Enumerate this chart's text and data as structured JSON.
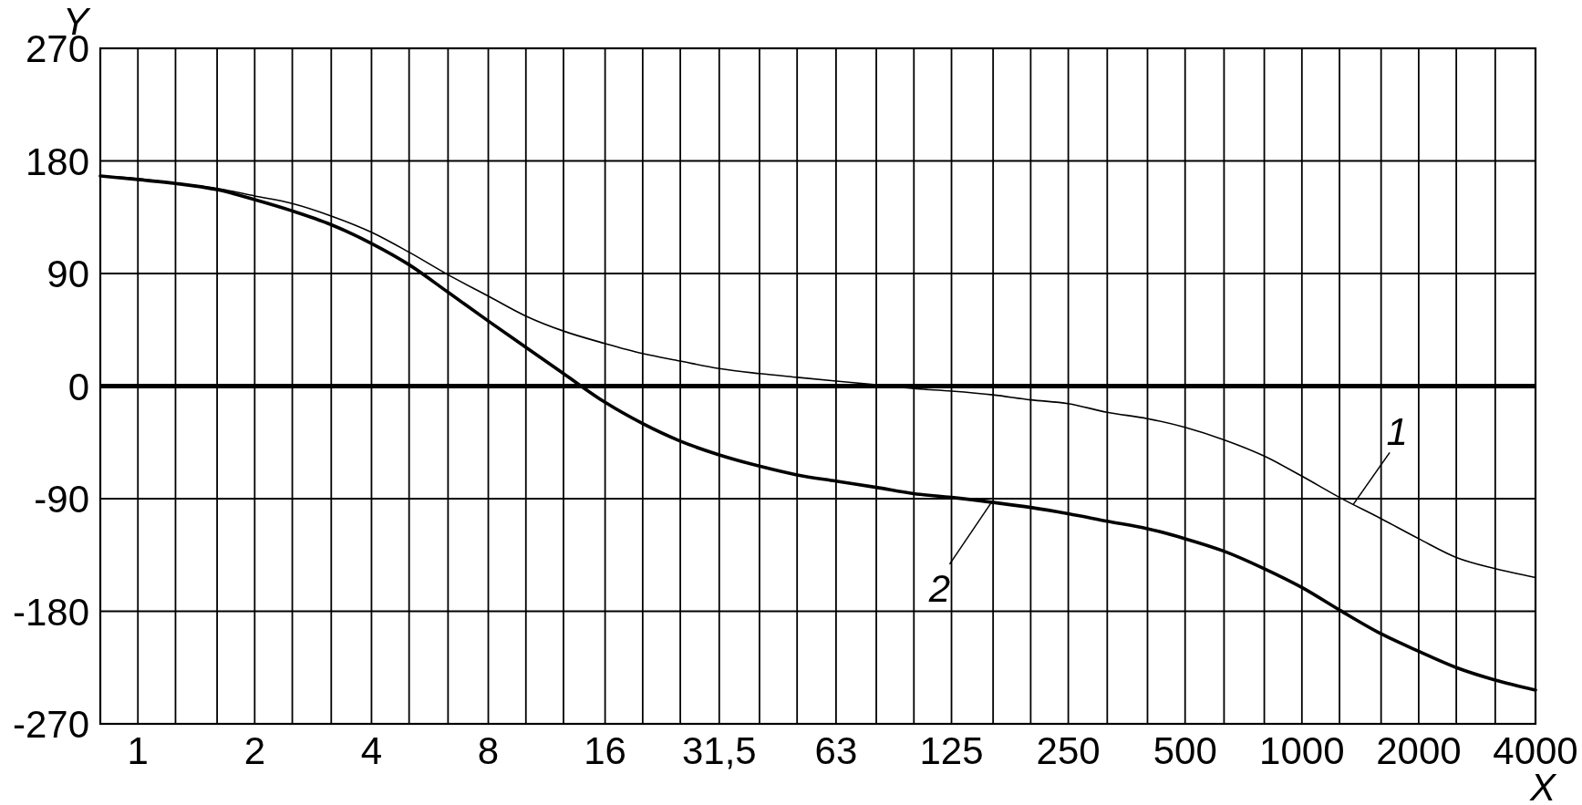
{
  "chart_data": {
    "type": "line",
    "xlabel": "X",
    "ylabel": "Y",
    "log": "x",
    "x": [
      0.8,
      1,
      1.25,
      1.6,
      2,
      2.5,
      3.15,
      4,
      5,
      6.3,
      8,
      10,
      12.5,
      16,
      20,
      25,
      31.5,
      40,
      50,
      63,
      80,
      100,
      125,
      160,
      200,
      250,
      315,
      400,
      500,
      630,
      800,
      1000,
      1250,
      1600,
      2000,
      2500,
      3150,
      4000
    ],
    "xlim": [
      0.8,
      4000
    ],
    "xticks": [
      1,
      {
        "value": 1.25,
        "label": null
      },
      {
        "value": 1.6,
        "label": null
      },
      2,
      {
        "value": 2.5,
        "label": null
      },
      {
        "value": 3.15,
        "label": null
      },
      4,
      {
        "value": 5,
        "label": null
      },
      {
        "value": 6.3,
        "label": null
      },
      8,
      {
        "value": 10,
        "label": null
      },
      {
        "value": 12.5,
        "label": null
      },
      16,
      {
        "value": 20,
        "label": null
      },
      {
        "value": 25,
        "label": null
      },
      {
        "value": 31.5,
        "label": "31,5"
      },
      {
        "value": 40,
        "label": null
      },
      {
        "value": 50,
        "label": null
      },
      63,
      {
        "value": 80,
        "label": null
      },
      {
        "value": 100,
        "label": null
      },
      125,
      {
        "value": 160,
        "label": null
      },
      {
        "value": 200,
        "label": null
      },
      250,
      {
        "value": 315,
        "label": null
      },
      {
        "value": 400,
        "label": null
      },
      500,
      {
        "value": 630,
        "label": null
      },
      {
        "value": 800,
        "label": null
      },
      1000,
      {
        "value": 1250,
        "label": null
      },
      {
        "value": 1600,
        "label": null
      },
      2000,
      {
        "value": 2500,
        "label": null
      },
      {
        "value": 3150,
        "label": null
      },
      4000
    ],
    "ylim": [
      -270,
      270
    ],
    "yticks": [
      -270,
      -180,
      -90,
      0,
      90,
      180,
      270
    ],
    "grid": true,
    "series": [
      {
        "name": "1",
        "color": "#000000",
        "values": [
          168,
          166,
          162,
          158,
          152,
          146,
          136,
          123,
          107,
          89,
          72,
          56,
          44,
          34,
          26,
          20,
          14,
          10,
          7,
          4,
          1,
          -2,
          -4,
          -7,
          -11,
          -14,
          -21,
          -26,
          -33,
          -43,
          -56,
          -72,
          -89,
          -106,
          -122,
          -137,
          -146,
          -153
        ]
      },
      {
        "name": "2",
        "color": "#000000",
        "values": [
          168,
          165,
          162,
          157,
          149,
          140,
          129,
          114,
          97,
          75,
          52,
          31,
          10,
          -13,
          -30,
          -44,
          -55,
          -64,
          -71,
          -76,
          -81,
          -86,
          -89,
          -93,
          -97,
          -102,
          -108,
          -114,
          -122,
          -132,
          -146,
          -161,
          -179,
          -198,
          -212,
          -225,
          -235,
          -243
        ]
      }
    ],
    "ref_lines": [
      {
        "axis": "y",
        "value": 0
      }
    ]
  }
}
